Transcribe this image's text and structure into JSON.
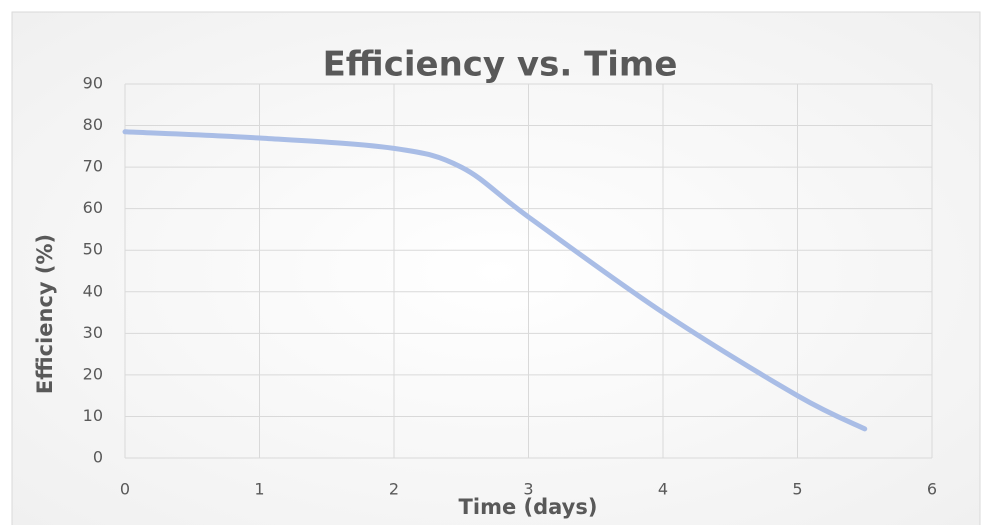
{
  "chart_data": {
    "type": "line",
    "title": "Efficiency vs. Time",
    "x_label": "Time (days)",
    "y_label": "Efficiency (%)",
    "x": [
      0,
      1,
      2,
      2.5,
      3,
      4,
      5,
      5.5
    ],
    "series": [
      {
        "name": "Efficiency",
        "color": "#a9bde6",
        "values": [
          78.5,
          77,
          74.5,
          70,
          58,
          35,
          15,
          7
        ]
      }
    ],
    "xlim": [
      0,
      6
    ],
    "xticks": [
      0,
      1,
      2,
      3,
      4,
      5,
      6
    ],
    "ylim": [
      0,
      90
    ],
    "yticks": [
      0,
      10,
      20,
      30,
      40,
      50,
      60,
      70,
      80,
      90
    ],
    "grid": true,
    "smooth": true
  }
}
